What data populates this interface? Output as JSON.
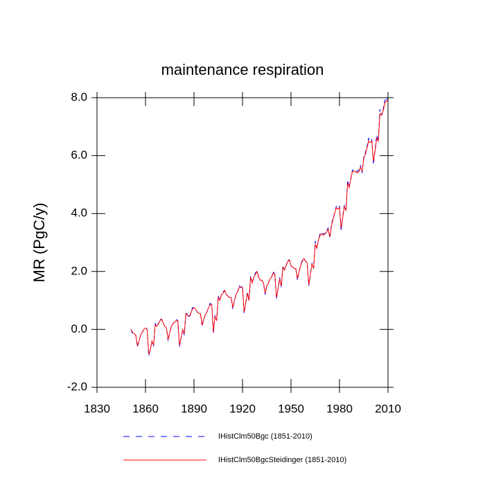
{
  "chart_data": {
    "type": "line",
    "title": "maintenance respiration",
    "ylabel": "MR  (PgC/y)",
    "xlim": [
      1830,
      2010
    ],
    "ylim": [
      -2,
      8
    ],
    "xticks": [
      1830,
      1860,
      1890,
      1920,
      1950,
      1980,
      2010
    ],
    "yticks": [
      {
        "value": -2,
        "label": "-2.0"
      },
      {
        "value": 0,
        "label": "0.0"
      },
      {
        "value": 2,
        "label": "2.0"
      },
      {
        "value": 4,
        "label": "4.0"
      },
      {
        "value": 6,
        "label": "6.0"
      },
      {
        "value": 8,
        "label": "8.0"
      }
    ],
    "x": [
      1851,
      1852,
      1853,
      1854,
      1855,
      1856,
      1857,
      1858,
      1859,
      1860,
      1861,
      1862,
      1863,
      1864,
      1865,
      1866,
      1867,
      1868,
      1869,
      1870,
      1871,
      1872,
      1873,
      1874,
      1875,
      1876,
      1877,
      1878,
      1879,
      1880,
      1881,
      1882,
      1883,
      1884,
      1885,
      1886,
      1887,
      1888,
      1889,
      1890,
      1891,
      1892,
      1893,
      1894,
      1895,
      1896,
      1897,
      1898,
      1899,
      1900,
      1901,
      1902,
      1903,
      1904,
      1905,
      1906,
      1907,
      1908,
      1909,
      1910,
      1911,
      1912,
      1913,
      1914,
      1915,
      1916,
      1917,
      1918,
      1919,
      1920,
      1921,
      1922,
      1923,
      1924,
      1925,
      1926,
      1927,
      1928,
      1929,
      1930,
      1931,
      1932,
      1933,
      1934,
      1935,
      1936,
      1937,
      1938,
      1939,
      1940,
      1941,
      1942,
      1943,
      1944,
      1945,
      1946,
      1947,
      1948,
      1949,
      1950,
      1951,
      1952,
      1953,
      1954,
      1955,
      1956,
      1957,
      1958,
      1959,
      1960,
      1961,
      1962,
      1963,
      1964,
      1965,
      1966,
      1967,
      1968,
      1969,
      1970,
      1971,
      1972,
      1973,
      1974,
      1975,
      1976,
      1977,
      1978,
      1979,
      1980,
      1981,
      1982,
      1983,
      1984,
      1985,
      1986,
      1987,
      1988,
      1989,
      1990,
      1991,
      1992,
      1993,
      1994,
      1995,
      1996,
      1997,
      1998,
      1999,
      2000,
      2001,
      2002,
      2003,
      2004,
      2005,
      2006,
      2007,
      2008,
      2009,
      2010
    ],
    "series": [
      {
        "name": "IHistClm50Bgc (1851-2010)",
        "color": "#0000ff",
        "dash": true,
        "values": [
          0.0,
          -0.15,
          -0.15,
          -0.2,
          -0.6,
          -0.4,
          -0.2,
          -0.1,
          0.0,
          0.05,
          0.0,
          -0.9,
          -0.7,
          -0.4,
          -0.6,
          0.2,
          0.1,
          0.2,
          0.35,
          0.35,
          0.2,
          0.1,
          0.05,
          -0.4,
          -0.1,
          0.1,
          0.2,
          0.25,
          0.35,
          0.3,
          -0.6,
          -0.3,
          0.0,
          -0.2,
          0.6,
          0.5,
          0.4,
          0.55,
          0.75,
          0.75,
          0.7,
          0.6,
          0.55,
          0.55,
          0.1,
          0.35,
          0.5,
          0.6,
          0.75,
          0.9,
          0.85,
          -0.15,
          0.5,
          0.3,
          1.15,
          1.0,
          1.2,
          1.3,
          1.35,
          1.2,
          1.15,
          1.1,
          1.1,
          0.7,
          1.0,
          1.2,
          1.3,
          1.5,
          1.45,
          1.5,
          0.55,
          0.9,
          1.3,
          1.0,
          1.85,
          1.6,
          1.8,
          1.95,
          2.0,
          1.8,
          1.7,
          1.7,
          1.6,
          1.2,
          1.5,
          1.6,
          1.75,
          1.8,
          2.0,
          1.9,
          1.05,
          1.4,
          1.8,
          1.45,
          2.2,
          2.05,
          2.2,
          2.4,
          2.4,
          2.2,
          2.15,
          2.1,
          2.1,
          1.7,
          2.0,
          2.2,
          2.4,
          2.45,
          2.35,
          2.3,
          1.5,
          1.9,
          2.3,
          2.1,
          3.05,
          2.8,
          3.1,
          3.3,
          3.35,
          3.3,
          3.3,
          3.4,
          3.5,
          3.15,
          3.6,
          3.85,
          4.0,
          4.25,
          4.2,
          4.25,
          3.4,
          3.9,
          4.3,
          4.1,
          5.15,
          4.9,
          5.2,
          5.5,
          5.5,
          5.5,
          5.45,
          5.5,
          5.65,
          5.4,
          5.95,
          6.1,
          6.3,
          6.6,
          6.5,
          6.55,
          5.7,
          6.2,
          6.7,
          6.5,
          7.6,
          7.4,
          7.6,
          7.9,
          8.0,
          7.9
        ]
      },
      {
        "name": "IHistClm50BgcSteidinger (1851-2010)",
        "color": "#ff0000",
        "dash": false,
        "values": [
          0.0,
          -0.1,
          -0.15,
          -0.2,
          -0.55,
          -0.4,
          -0.2,
          -0.1,
          0.0,
          0.05,
          0.0,
          -0.85,
          -0.7,
          -0.4,
          -0.55,
          0.15,
          0.1,
          0.2,
          0.3,
          0.35,
          0.2,
          0.1,
          0.05,
          -0.35,
          -0.1,
          0.1,
          0.2,
          0.25,
          0.3,
          0.3,
          -0.55,
          -0.3,
          0.0,
          -0.15,
          0.55,
          0.5,
          0.45,
          0.55,
          0.7,
          0.75,
          0.7,
          0.6,
          0.55,
          0.55,
          0.15,
          0.35,
          0.5,
          0.6,
          0.75,
          0.85,
          0.85,
          -0.1,
          0.45,
          0.3,
          1.1,
          1.0,
          1.2,
          1.25,
          1.35,
          1.2,
          1.15,
          1.1,
          1.1,
          0.75,
          1.0,
          1.2,
          1.3,
          1.45,
          1.45,
          1.45,
          0.6,
          0.9,
          1.25,
          1.0,
          1.8,
          1.6,
          1.8,
          1.9,
          2.0,
          1.8,
          1.7,
          1.7,
          1.6,
          1.25,
          1.5,
          1.6,
          1.75,
          1.8,
          1.95,
          1.9,
          1.1,
          1.4,
          1.75,
          1.5,
          2.15,
          2.05,
          2.2,
          2.35,
          2.4,
          2.2,
          2.15,
          2.1,
          2.1,
          1.75,
          2.0,
          2.2,
          2.35,
          2.45,
          2.35,
          2.3,
          1.55,
          1.9,
          2.25,
          2.1,
          2.95,
          2.8,
          3.1,
          3.25,
          3.3,
          3.25,
          3.3,
          3.35,
          3.45,
          3.2,
          3.55,
          3.8,
          4.0,
          4.2,
          4.15,
          4.2,
          3.5,
          3.85,
          4.25,
          4.1,
          5.05,
          4.9,
          5.2,
          5.45,
          5.45,
          5.45,
          5.4,
          5.45,
          5.6,
          5.45,
          5.9,
          6.05,
          6.25,
          6.5,
          6.45,
          6.5,
          5.8,
          6.15,
          6.6,
          6.5,
          7.45,
          7.4,
          7.55,
          7.8,
          7.9,
          7.85
        ]
      }
    ]
  }
}
